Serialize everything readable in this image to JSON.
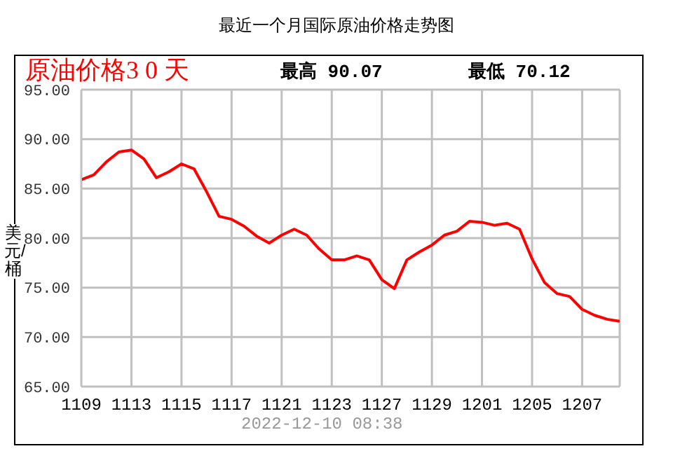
{
  "chart_data": {
    "type": "line",
    "title": "最近一个月国际原油价格走势图",
    "ylabel": "美元/桶",
    "annotations": [
      "原油价格3 0 天",
      "最高 90.07",
      "最低 70.12",
      "2022-12-10 08:38"
    ],
    "categories": [
      "1109",
      null,
      null,
      null,
      "1113",
      null,
      null,
      null,
      "1115",
      null,
      null,
      null,
      "1117",
      null,
      null,
      null,
      "1121",
      null,
      null,
      null,
      "1123",
      null,
      null,
      null,
      "1127",
      null,
      null,
      null,
      "1129",
      null,
      null,
      null,
      "1201",
      null,
      null,
      null,
      "1205",
      null,
      null,
      null,
      "1207",
      null,
      null,
      null
    ],
    "series": [
      {
        "color": "#ff0000",
        "values": [
          85.9,
          86.4,
          87.7,
          88.7,
          88.9,
          88.0,
          86.1,
          86.7,
          87.5,
          87.0,
          84.7,
          82.2,
          81.9,
          81.2,
          80.2,
          79.5,
          80.3,
          80.9,
          80.3,
          78.9,
          77.8,
          77.8,
          78.2,
          77.8,
          75.8,
          74.9,
          77.8,
          78.6,
          79.3,
          80.3,
          80.7,
          81.7,
          81.6,
          81.3,
          81.5,
          80.9,
          77.9,
          75.5,
          74.4,
          74.1,
          72.8,
          72.2,
          71.8,
          71.6
        ]
      }
    ],
    "ylim": [
      65,
      95
    ],
    "yticks": [
      {
        "value": 65,
        "label": "65.00"
      },
      {
        "value": 70,
        "label": "70.00"
      },
      {
        "value": 75,
        "label": "75.00"
      },
      {
        "value": 80,
        "label": "80.00"
      },
      {
        "value": 85,
        "label": "85.00"
      },
      {
        "value": 90,
        "label": "90.00"
      },
      {
        "value": 95,
        "label": "95.00"
      }
    ],
    "grid": true
  }
}
